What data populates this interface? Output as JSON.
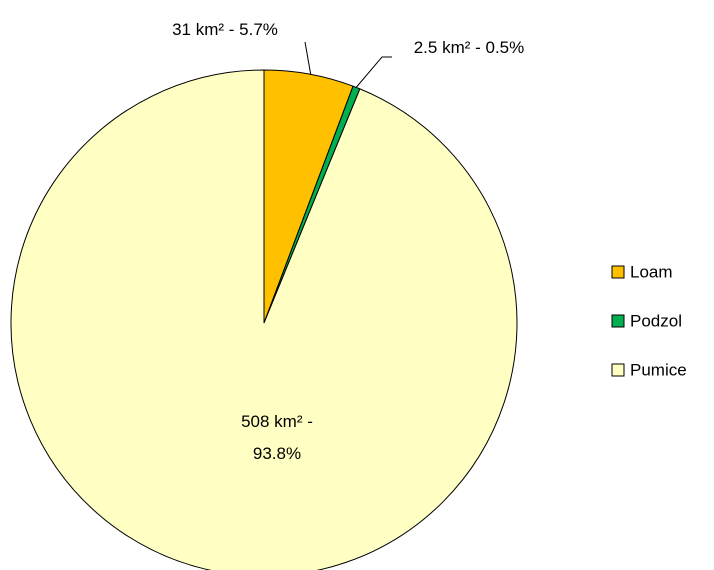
{
  "chart_data": {
    "type": "pie",
    "categories": [
      "Loam",
      "Podzol",
      "Pumice"
    ],
    "values": [
      31,
      2.5,
      508
    ],
    "value_labels": [
      "31 km² - 5.7%",
      "2.5 km² - 0.5%",
      "508 km² - 93.8%"
    ],
    "colors": [
      "#ffc000",
      "#00b050",
      "#ffffc4"
    ],
    "legend": "right"
  }
}
